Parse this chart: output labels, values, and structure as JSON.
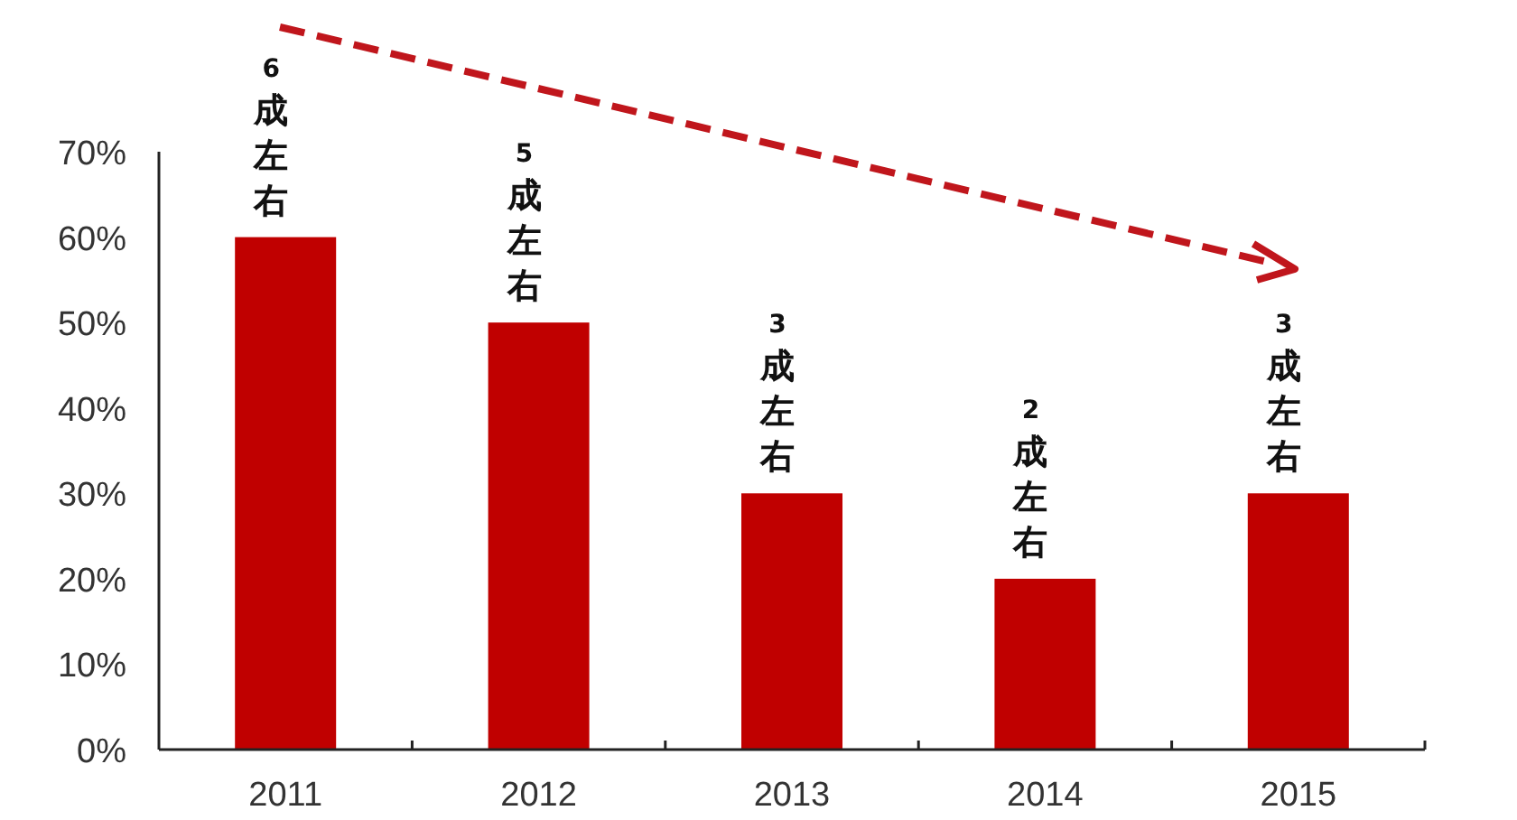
{
  "chart_data": {
    "type": "bar",
    "categories": [
      "2011",
      "2012",
      "2013",
      "2014",
      "2015"
    ],
    "values": [
      60,
      50,
      30,
      20,
      30
    ],
    "color": "#c00000",
    "annotations": [
      {
        "text": "6成左右",
        "x": "2011",
        "y": 60
      },
      {
        "text": "5成左右",
        "x": "2012",
        "y": 50
      },
      {
        "text": "3成左右",
        "x": "2013",
        "y": 30
      },
      {
        "text": "2成左右",
        "x": "2014",
        "y": 20
      },
      {
        "text": "3成左右",
        "x": "2015",
        "y": 30
      }
    ],
    "ylim": [
      0,
      70
    ],
    "yticks": [
      {
        "value": 0,
        "label": "0%"
      },
      {
        "value": 10,
        "label": "10%"
      },
      {
        "value": 20,
        "label": "20%"
      },
      {
        "value": 30,
        "label": "30%"
      },
      {
        "value": 40,
        "label": "40%"
      },
      {
        "value": 50,
        "label": "50%"
      },
      {
        "value": 60,
        "label": "60%"
      },
      {
        "value": 70,
        "label": "70%"
      }
    ],
    "grid": false
  }
}
